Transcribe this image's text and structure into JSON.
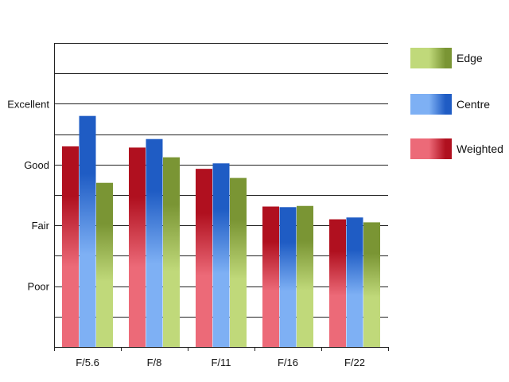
{
  "chart_data": {
    "type": "bar",
    "title": "",
    "xlabel": "",
    "ylabel": "",
    "categories": [
      "F/5.6",
      "F/8",
      "F/11",
      "F/16",
      "F/22"
    ],
    "y_tick_labels": [
      {
        "value": 1,
        "label": "Poor"
      },
      {
        "value": 2,
        "label": "Fair"
      },
      {
        "value": 3,
        "label": "Good"
      },
      {
        "value": 4,
        "label": "Excellent"
      }
    ],
    "ylim": [
      0,
      5
    ],
    "grid": "horizontal gridlines every 0.5",
    "legend_position": "right",
    "series": [
      {
        "name": "Weighted",
        "color": "#b0101f",
        "light": "#ec6a78",
        "values": [
          3.3,
          3.28,
          2.93,
          2.31,
          2.1
        ]
      },
      {
        "name": "Centre",
        "color": "#1f5cc4",
        "light": "#7eb0f4",
        "values": [
          3.8,
          3.42,
          3.02,
          2.3,
          2.13
        ]
      },
      {
        "name": "Edge",
        "color": "#7a9534",
        "light": "#c0d97a",
        "values": [
          2.7,
          3.12,
          2.78,
          2.32,
          2.05
        ]
      }
    ],
    "legend_order": [
      "Edge",
      "Centre",
      "Weighted"
    ]
  }
}
